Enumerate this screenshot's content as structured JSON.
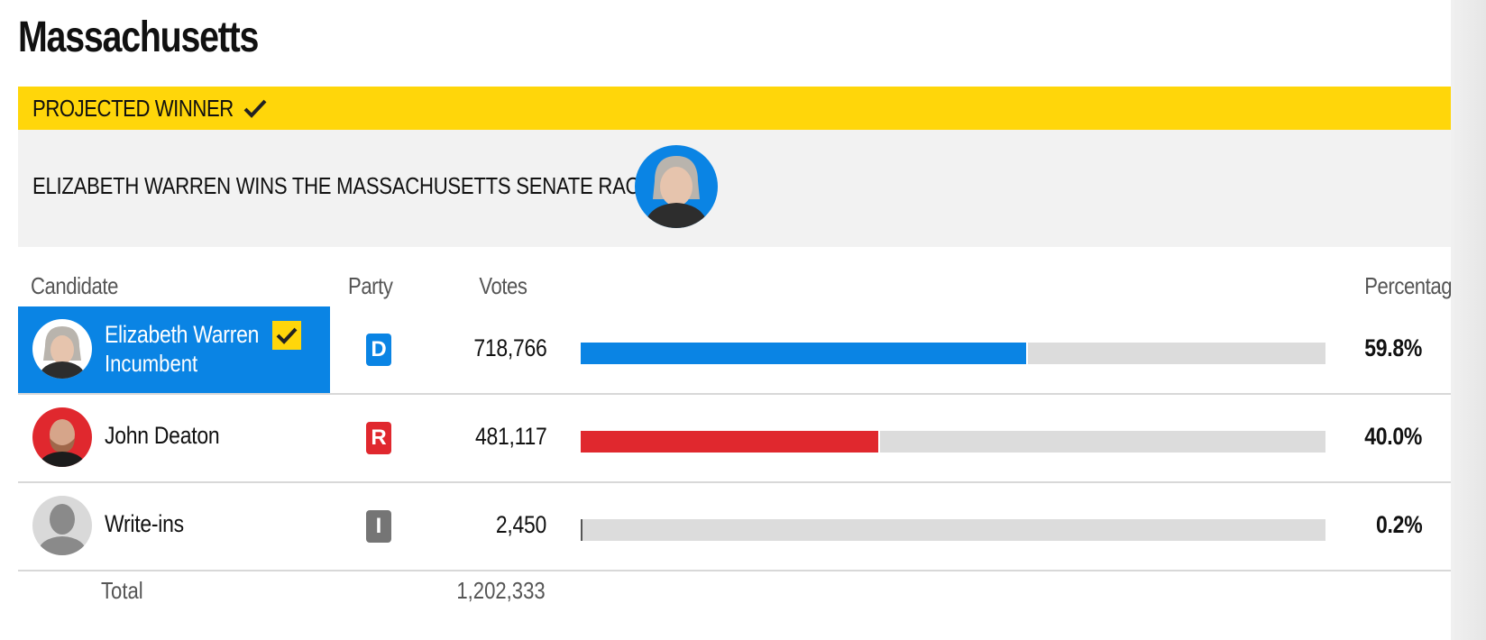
{
  "state_title": "Massachusetts",
  "winner_banner": {
    "label": "PROJECTED WINNER",
    "icon": "checkmark-icon",
    "headline": "ELIZABETH WARREN WINS THE MASSACHUSETTS SENATE RACE",
    "photo_icon": "candidate-photo"
  },
  "columns": {
    "candidate": "Candidate",
    "party": "Party",
    "votes": "Votes",
    "percentage": "Percentage"
  },
  "candidates": [
    {
      "name": "Elizabeth Warren",
      "status": "Incumbent",
      "party": "D",
      "votes": "718,766",
      "percentage": "59.8%",
      "share": 0.598,
      "winner": true
    },
    {
      "name": "John Deaton",
      "status": "",
      "party": "R",
      "votes": "481,117",
      "percentage": "40.0%",
      "share": 0.4,
      "winner": false
    },
    {
      "name": "Write-ins",
      "status": "",
      "party": "I",
      "votes": "2,450",
      "percentage": "0.2%",
      "share": 0.002,
      "winner": false
    }
  ],
  "total": {
    "label": "Total",
    "votes": "1,202,333"
  },
  "colors": {
    "winner_yellow": "#ffd60a",
    "democrat_blue": "#0a84e4",
    "republican_red": "#e0282e",
    "independent_gray": "#757575",
    "bar_track": "#dcdcdc",
    "panel_gray": "#f2f2f2"
  }
}
